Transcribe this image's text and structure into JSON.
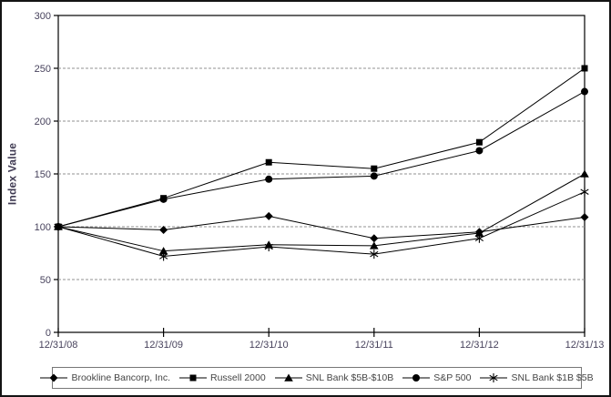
{
  "chart_data": {
    "type": "line",
    "title": "",
    "xlabel": "",
    "ylabel": "Index Value",
    "ylim": [
      0,
      300
    ],
    "yticks": [
      0,
      50,
      100,
      150,
      200,
      250,
      300
    ],
    "grid": "horizontal dashed",
    "legend_position": "bottom",
    "categories": [
      "12/31/08",
      "12/31/09",
      "12/31/10",
      "12/31/11",
      "12/31/12",
      "12/31/13"
    ],
    "series": [
      {
        "name": "Brookline Bancorp, Inc.",
        "marker": "diamond",
        "color": "#000000",
        "values": [
          100,
          97,
          110,
          89,
          95,
          109
        ]
      },
      {
        "name": "Russell 2000",
        "marker": "square",
        "color": "#000000",
        "values": [
          100,
          127,
          161,
          155,
          180,
          250
        ]
      },
      {
        "name": "SNL Bank $5B-$10B",
        "marker": "triangle",
        "color": "#000000",
        "values": [
          100,
          77,
          83,
          82,
          94,
          150
        ]
      },
      {
        "name": "S&P 500",
        "marker": "circle",
        "color": "#000000",
        "values": [
          100,
          126,
          145,
          148,
          172,
          228
        ]
      },
      {
        "name": "SNL Bank $1B $5B",
        "marker": "star",
        "color": "#000000",
        "values": [
          100,
          72,
          81,
          74,
          89,
          133
        ]
      }
    ]
  },
  "colors": {
    "background": "#ffffff",
    "figure_border": "#141414",
    "plot_border": "#000000",
    "grid": "#909090",
    "axis_text": "#47425c",
    "legend_text": "#454545",
    "legend_border": "#777777"
  }
}
